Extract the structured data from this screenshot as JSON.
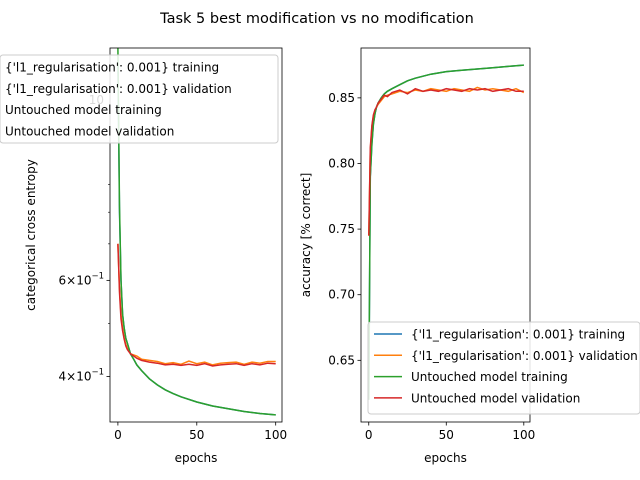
{
  "figure": {
    "title": "Task 5 best modification vs no modification"
  },
  "colors": {
    "series": [
      "#1f77b4",
      "#ff7f0e",
      "#2ca02c",
      "#d62728"
    ]
  },
  "chart_data": [
    {
      "type": "line",
      "yscale": "log",
      "xlabel": "epochs",
      "ylabel": "categorical cross entropy",
      "xlim": [
        -5,
        104
      ],
      "ylim": [
        0.33,
        1.6
      ],
      "xticks": [
        0,
        50,
        100
      ],
      "yticks": [
        {
          "value": 0.6,
          "base": "6",
          "exp": "−1"
        },
        {
          "value": 0.4,
          "base": "4",
          "exp": "−1"
        }
      ],
      "partial_tick_text": "10",
      "grid": false,
      "legend": {
        "placement": "top-left",
        "entries": [
          "{'l1_regularisation': 0.001} training",
          "{'l1_regularisation': 0.001} validation",
          "Untouched model training",
          "Untouched model validation"
        ]
      },
      "series": [
        {
          "name": "{'l1_regularisation': 0.001} training",
          "x": [
            0,
            1,
            2,
            3,
            4,
            5,
            6,
            8,
            10,
            12,
            15,
            20,
            25,
            30,
            35,
            40,
            50,
            60,
            70,
            80,
            90,
            100
          ],
          "y": [
            1.5,
            0.8,
            0.6,
            0.52,
            0.49,
            0.47,
            0.46,
            0.44,
            0.43,
            0.42,
            0.41,
            0.396,
            0.386,
            0.378,
            0.372,
            0.367,
            0.359,
            0.353,
            0.349,
            0.345,
            0.342,
            0.34
          ]
        },
        {
          "name": "{'l1_regularisation': 0.001} validation",
          "x": [
            0,
            1,
            2,
            3,
            4,
            5,
            6,
            8,
            10,
            12,
            15,
            20,
            25,
            30,
            35,
            40,
            45,
            50,
            55,
            60,
            65,
            70,
            75,
            80,
            85,
            90,
            95,
            100
          ],
          "y": [
            0.7,
            0.58,
            0.52,
            0.49,
            0.47,
            0.458,
            0.45,
            0.44,
            0.438,
            0.436,
            0.43,
            0.428,
            0.426,
            0.422,
            0.424,
            0.421,
            0.427,
            0.422,
            0.425,
            0.42,
            0.423,
            0.424,
            0.425,
            0.421,
            0.425,
            0.423,
            0.426,
            0.426
          ]
        },
        {
          "name": "Untouched model training",
          "x": [
            0,
            1,
            2,
            3,
            4,
            5,
            6,
            8,
            10,
            12,
            15,
            20,
            25,
            30,
            35,
            40,
            50,
            60,
            70,
            80,
            90,
            100
          ],
          "y": [
            1.6,
            0.82,
            0.6,
            0.52,
            0.49,
            0.47,
            0.46,
            0.44,
            0.43,
            0.42,
            0.41,
            0.396,
            0.386,
            0.378,
            0.372,
            0.367,
            0.359,
            0.353,
            0.349,
            0.345,
            0.342,
            0.34
          ]
        },
        {
          "name": "Untouched model validation",
          "x": [
            0,
            1,
            2,
            3,
            4,
            5,
            6,
            8,
            10,
            12,
            15,
            20,
            25,
            30,
            35,
            40,
            45,
            50,
            55,
            60,
            65,
            70,
            75,
            80,
            85,
            90,
            95,
            100
          ],
          "y": [
            0.7,
            0.57,
            0.51,
            0.485,
            0.468,
            0.455,
            0.448,
            0.44,
            0.436,
            0.432,
            0.428,
            0.425,
            0.423,
            0.42,
            0.421,
            0.419,
            0.421,
            0.419,
            0.422,
            0.418,
            0.42,
            0.421,
            0.422,
            0.419,
            0.422,
            0.42,
            0.423,
            0.422
          ]
        }
      ]
    },
    {
      "type": "line",
      "xlabel": "epochs",
      "ylabel": "accuracy [% correct]",
      "xlim": [
        -5,
        104
      ],
      "ylim": [
        0.603,
        0.888
      ],
      "xticks": [
        0,
        50,
        100
      ],
      "yticks": [
        0.65,
        0.7,
        0.75,
        0.8,
        0.85
      ],
      "grid": false,
      "legend": {
        "placement": "lower-right",
        "entries": [
          "{'l1_regularisation': 0.001} training",
          "{'l1_regularisation': 0.001} validation",
          "Untouched model training",
          "Untouched model validation"
        ]
      },
      "series": [
        {
          "name": "{'l1_regularisation': 0.001} training",
          "x": [
            0,
            1,
            2,
            3,
            4,
            5,
            6,
            8,
            10,
            12,
            15,
            20,
            25,
            30,
            40,
            50,
            60,
            70,
            80,
            90,
            100
          ],
          "y": [
            0.62,
            0.79,
            0.815,
            0.83,
            0.838,
            0.843,
            0.846,
            0.85,
            0.853,
            0.855,
            0.857,
            0.86,
            0.863,
            0.865,
            0.868,
            0.87,
            0.871,
            0.872,
            0.873,
            0.874,
            0.875
          ]
        },
        {
          "name": "{'l1_regularisation': 0.001} validation",
          "x": [
            0,
            1,
            2,
            3,
            4,
            5,
            6,
            8,
            10,
            12,
            15,
            20,
            25,
            30,
            35,
            40,
            45,
            50,
            55,
            60,
            65,
            70,
            75,
            80,
            85,
            90,
            95,
            100
          ],
          "y": [
            0.745,
            0.81,
            0.828,
            0.836,
            0.84,
            0.843,
            0.845,
            0.848,
            0.851,
            0.852,
            0.853,
            0.855,
            0.854,
            0.856,
            0.855,
            0.857,
            0.856,
            0.855,
            0.857,
            0.856,
            0.855,
            0.858,
            0.856,
            0.857,
            0.856,
            0.855,
            0.857,
            0.854
          ]
        },
        {
          "name": "Untouched model training",
          "x": [
            0,
            1,
            2,
            3,
            4,
            5,
            6,
            8,
            10,
            12,
            15,
            20,
            25,
            30,
            40,
            50,
            60,
            70,
            80,
            90,
            100
          ],
          "y": [
            0.62,
            0.79,
            0.815,
            0.83,
            0.838,
            0.843,
            0.846,
            0.85,
            0.853,
            0.855,
            0.857,
            0.86,
            0.863,
            0.865,
            0.868,
            0.87,
            0.871,
            0.872,
            0.873,
            0.874,
            0.875
          ]
        },
        {
          "name": "Untouched model validation",
          "x": [
            0,
            1,
            2,
            3,
            4,
            5,
            6,
            8,
            10,
            12,
            15,
            20,
            25,
            30,
            35,
            40,
            45,
            50,
            55,
            60,
            65,
            70,
            75,
            80,
            85,
            90,
            95,
            100
          ],
          "y": [
            0.745,
            0.812,
            0.829,
            0.837,
            0.841,
            0.843,
            0.846,
            0.849,
            0.852,
            0.851,
            0.854,
            0.856,
            0.853,
            0.857,
            0.855,
            0.856,
            0.855,
            0.857,
            0.856,
            0.855,
            0.857,
            0.856,
            0.857,
            0.855,
            0.856,
            0.857,
            0.855,
            0.855
          ]
        }
      ]
    }
  ]
}
